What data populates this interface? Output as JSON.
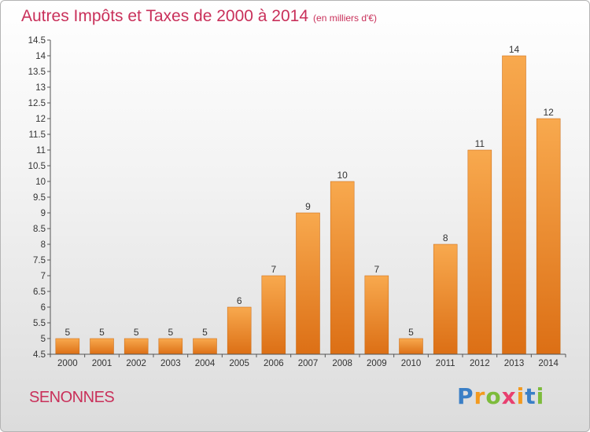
{
  "chart_data": {
    "type": "bar",
    "title": "Autres Impôts et Taxes de 2000 à 2014",
    "unit_note": "(en milliers d'€)",
    "categories": [
      "2000",
      "2001",
      "2002",
      "2003",
      "2004",
      "2005",
      "2006",
      "2007",
      "2008",
      "2009",
      "2010",
      "2011",
      "2012",
      "2013",
      "2014"
    ],
    "values": [
      5,
      5,
      5,
      5,
      5,
      6,
      7,
      9,
      10,
      7,
      5,
      8,
      11,
      14,
      12
    ],
    "ylim": [
      4.5,
      14.5
    ],
    "yticks": [
      "4.5",
      "5",
      "5.5",
      "6",
      "6.5",
      "7",
      "7.5",
      "8",
      "8.5",
      "9",
      "9.5",
      "10",
      "10.5",
      "11",
      "11.5",
      "12",
      "12.5",
      "13",
      "13.5",
      "14",
      "14.5"
    ],
    "grid": false,
    "bar_color": "#f29a3a"
  },
  "footer": {
    "place": "SENONNES",
    "logo_letters": [
      "P",
      "r",
      "o",
      "x",
      "i",
      "t",
      "i"
    ],
    "logo_colors": [
      "#3a7fc6",
      "#f39a1f",
      "#7dbb3b",
      "#e83f6f",
      "#f39a1f",
      "#3a7fc6",
      "#7dbb3b"
    ]
  }
}
